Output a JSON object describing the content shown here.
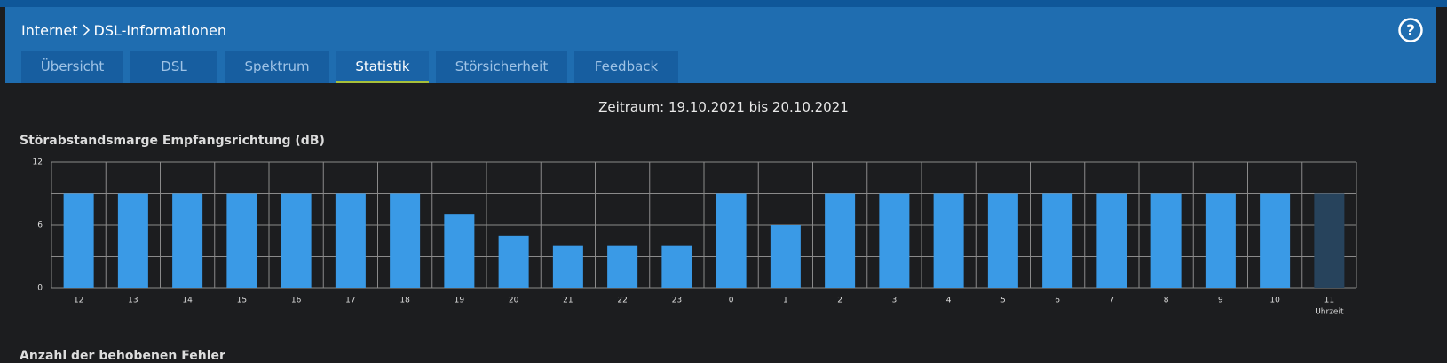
{
  "header": {
    "breadcrumb": [
      "Internet",
      "DSL-Informationen"
    ],
    "help": "?"
  },
  "tabs": [
    "Übersicht",
    "DSL",
    "Spektrum",
    "Statistik",
    "Störsicherheit",
    "Feedback"
  ],
  "active_tab": 3,
  "period": "Zeitraum: 19.10.2021 bis 20.10.2021",
  "chart_data": {
    "type": "bar",
    "title": "Störabstandsmarge Empfangsrichtung (dB)",
    "categories": [
      "12",
      "13",
      "14",
      "15",
      "16",
      "17",
      "18",
      "19",
      "20",
      "21",
      "22",
      "23",
      "0",
      "1",
      "2",
      "3",
      "4",
      "5",
      "6",
      "7",
      "8",
      "9",
      "10",
      "11"
    ],
    "values": [
      9,
      9,
      9,
      9,
      9,
      9,
      9,
      7,
      5,
      4,
      4,
      4,
      9,
      6,
      9,
      9,
      9,
      9,
      9,
      9,
      9,
      9,
      9,
      9
    ],
    "colors": [
      "#3a9ae6",
      "#3a9ae6",
      "#3a9ae6",
      "#3a9ae6",
      "#3a9ae6",
      "#3a9ae6",
      "#3a9ae6",
      "#3a9ae6",
      "#3a9ae6",
      "#3a9ae6",
      "#3a9ae6",
      "#3a9ae6",
      "#3a9ae6",
      "#3a9ae6",
      "#3a9ae6",
      "#3a9ae6",
      "#3a9ae6",
      "#3a9ae6",
      "#3a9ae6",
      "#3a9ae6",
      "#3a9ae6",
      "#3a9ae6",
      "#3a9ae6",
      "#27435c"
    ],
    "x_label": "Uhrzeit",
    "ylim": [
      0,
      12
    ],
    "yticks": [
      0,
      6,
      12
    ],
    "ygrid": [
      0,
      3,
      6,
      9,
      12
    ],
    "grid": true
  },
  "next_section": "Anzahl der behobenen Fehler"
}
